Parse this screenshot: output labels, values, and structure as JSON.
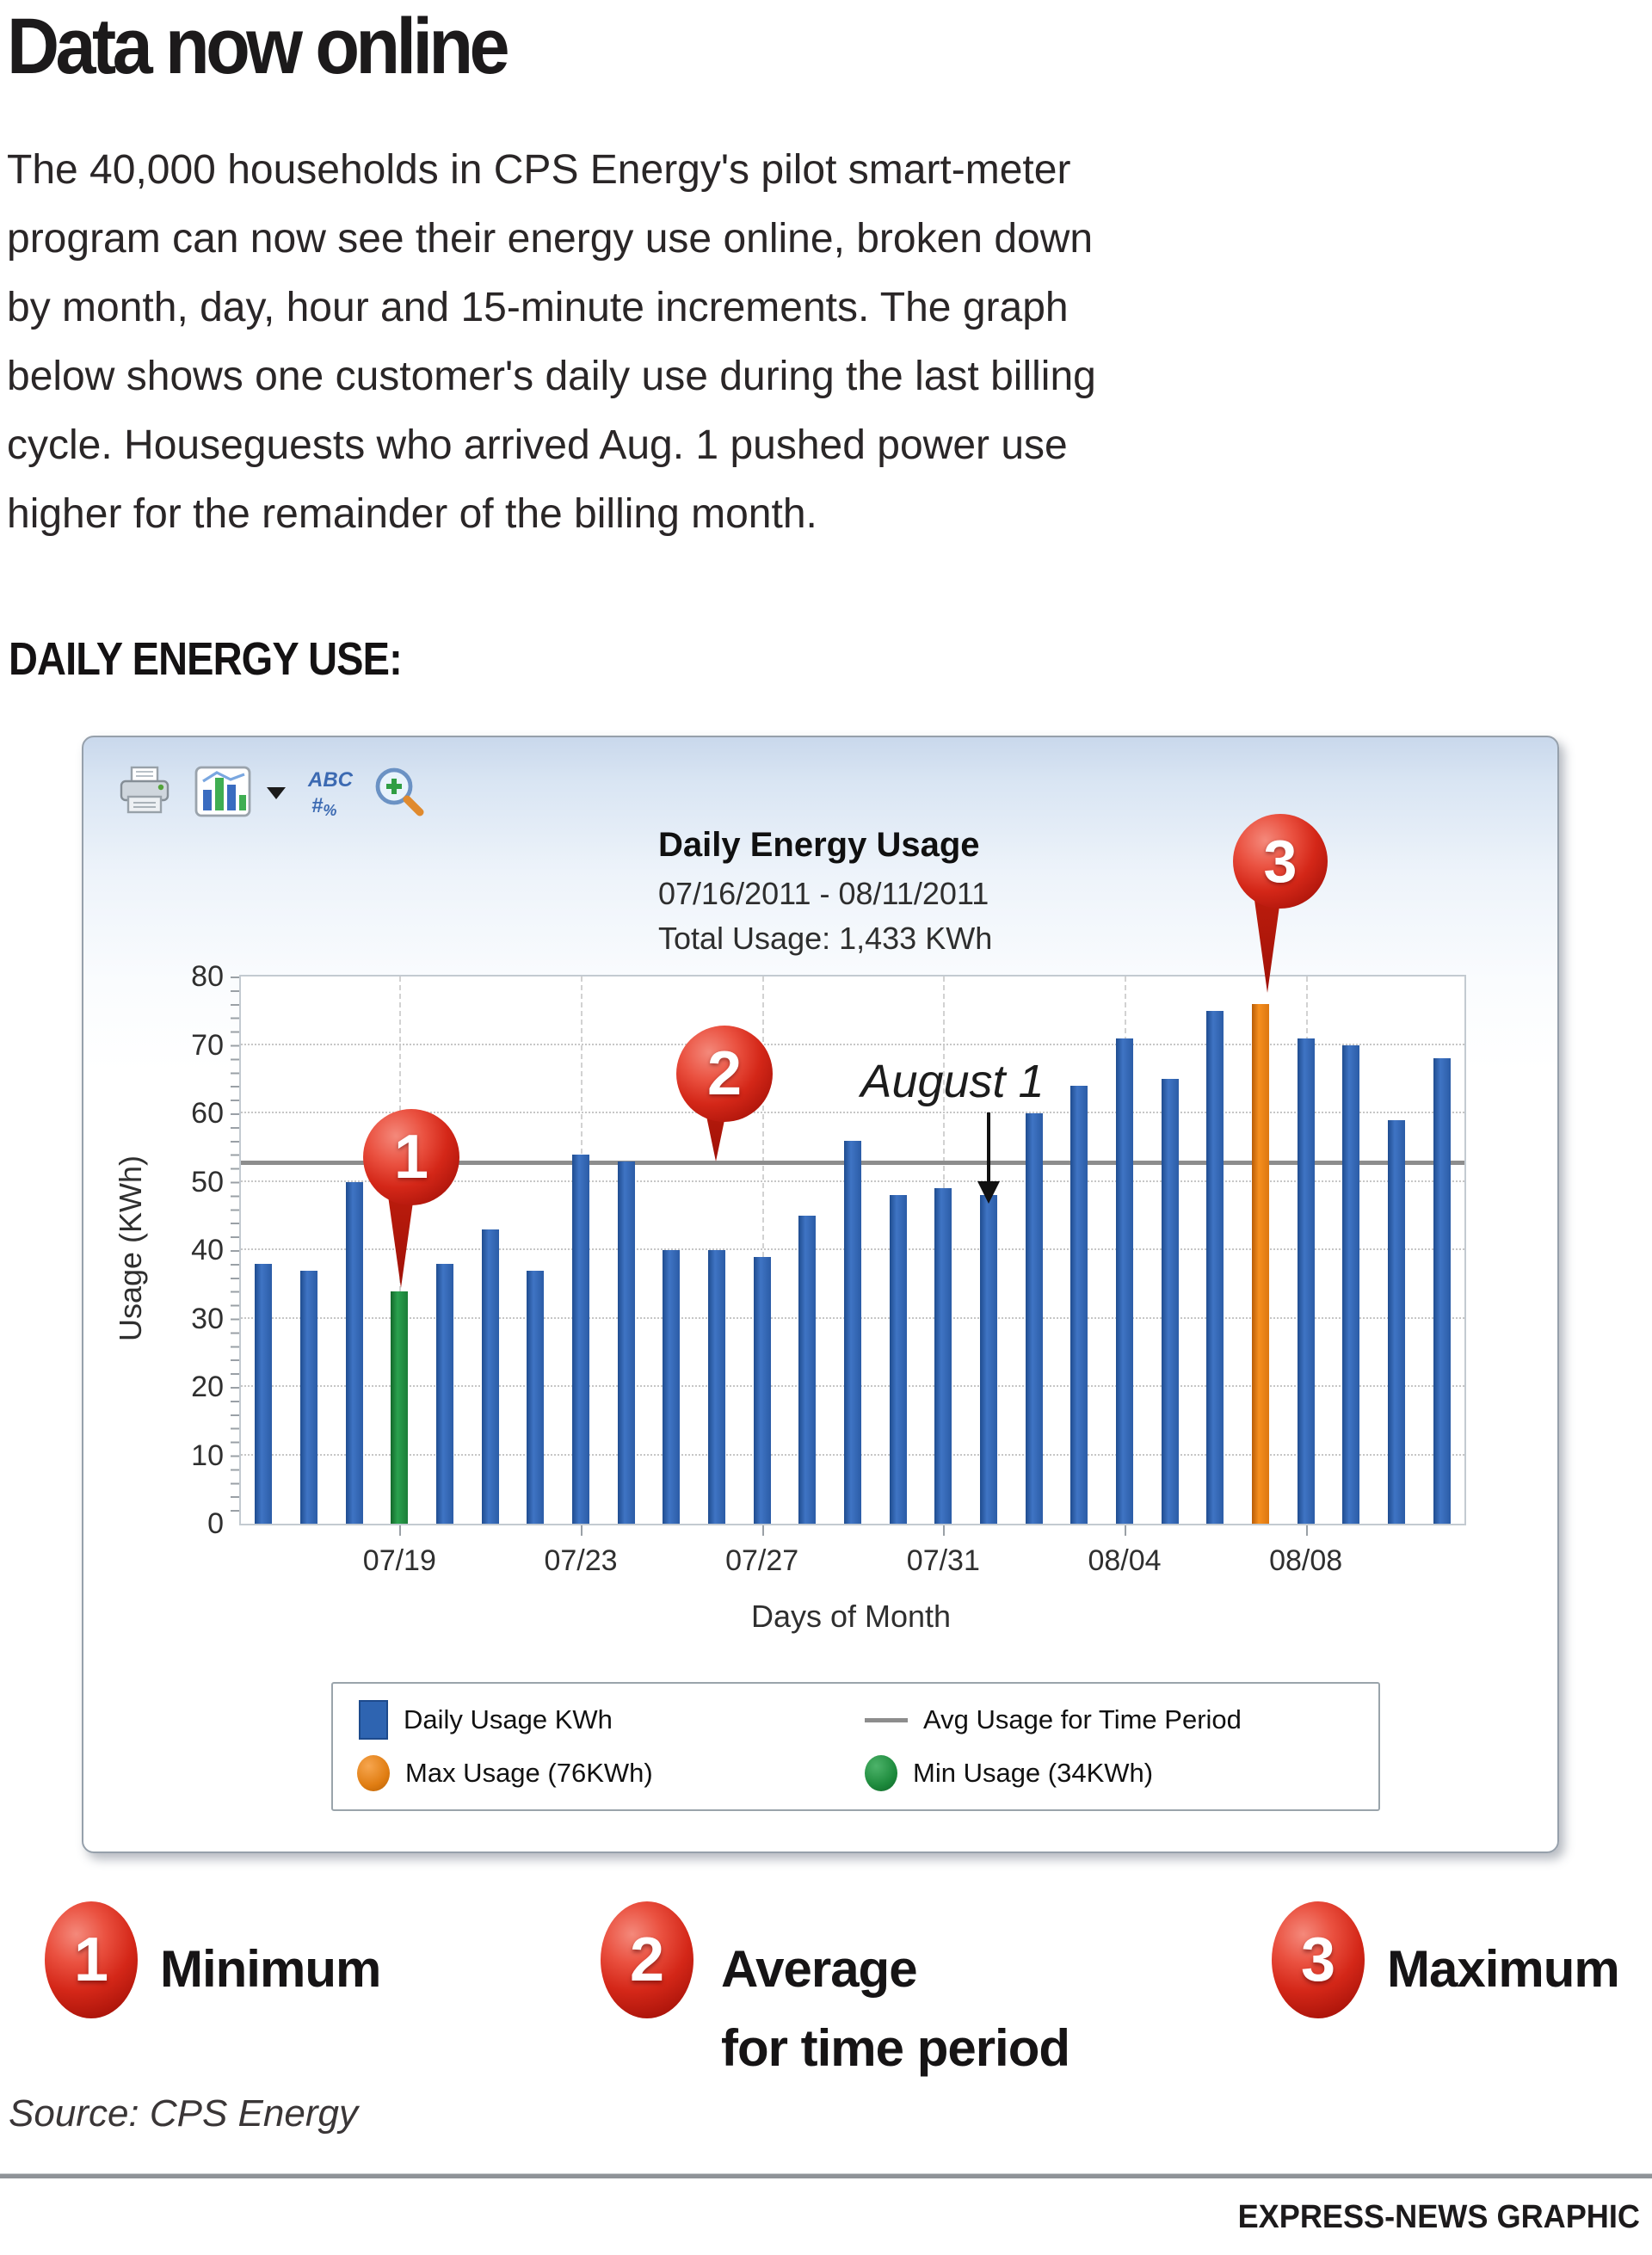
{
  "page": {
    "title": "Data now online",
    "intro_lines": [
      "The 40,000 households in CPS Energy's pilot smart-meter",
      "program can now see their energy use online, broken down",
      "by month, day, hour and 15-minute increments. The graph",
      "below shows one customer's daily use during the last billing",
      "cycle. Houseguests who arrived Aug. 1 pushed power use",
      "higher for the remainder of the billing month."
    ],
    "section_heading": "DAILY ENERGY USE:",
    "source": "Source: CPS Energy",
    "credit": "EXPRESS-NEWS GRAPHIC"
  },
  "widget": {
    "toolbar": {
      "print": "print",
      "chart_type": "chart-type",
      "chart_type_dropdown": "open chart type menu",
      "labels": "ABC #%",
      "zoom": "zoom-in"
    },
    "header": {
      "title": "Daily Energy Usage",
      "date_range": "07/16/2011 - 08/11/2011",
      "total_usage": "Total Usage: 1,433 KWh"
    }
  },
  "chart_data": {
    "type": "bar",
    "title": "Daily Energy Usage",
    "subtitle": "07/16/2011 - 08/11/2011",
    "total_label": "Total Usage: 1,433 KWh",
    "xlabel": "Days of Month",
    "ylabel": "Usage (KWh)",
    "ylim": [
      0,
      80
    ],
    "ytick_step": 10,
    "grid": true,
    "legend_position": "bottom",
    "categories": [
      "07/16",
      "07/17",
      "07/18",
      "07/19",
      "07/20",
      "07/21",
      "07/22",
      "07/23",
      "07/24",
      "07/25",
      "07/26",
      "07/27",
      "07/28",
      "07/29",
      "07/30",
      "07/31",
      "08/01",
      "08/02",
      "08/03",
      "08/04",
      "08/05",
      "08/06",
      "08/07",
      "08/08",
      "08/09",
      "08/10",
      "08/11"
    ],
    "values": [
      38,
      37,
      50,
      34,
      38,
      43,
      37,
      54,
      53,
      40,
      40,
      39,
      45,
      56,
      48,
      49,
      48,
      60,
      64,
      71,
      65,
      75,
      76,
      71,
      70,
      59,
      68
    ],
    "xticks": [
      {
        "index": 3,
        "label": "07/19"
      },
      {
        "index": 7,
        "label": "07/23"
      },
      {
        "index": 11,
        "label": "07/27"
      },
      {
        "index": 15,
        "label": "07/31"
      },
      {
        "index": 19,
        "label": "08/04"
      },
      {
        "index": 23,
        "label": "08/08"
      }
    ],
    "average_value": 52.5,
    "min_index": 3,
    "min_value": 34,
    "max_index": 22,
    "max_value": 76,
    "annotation": {
      "text": "August 1",
      "target_category": "08/01",
      "target_index": 16
    },
    "colors": {
      "bar": "#2b5ca6",
      "min_bar": "#1b7e38",
      "max_bar": "#dd7710",
      "avg_line": "#8d8d8d",
      "pin_red": "#c5200f"
    },
    "legend": [
      {
        "swatch": "blue-square",
        "label": "Daily Usage KWh"
      },
      {
        "swatch": "gray-line",
        "label": "Avg Usage for Time Period"
      },
      {
        "swatch": "orange-circle",
        "label": "Max Usage (76KWh)"
      },
      {
        "swatch": "green-circle",
        "label": "Min Usage (34KWh)"
      }
    ],
    "pins": [
      {
        "label": "1",
        "points_to": "min"
      },
      {
        "label": "2",
        "points_to": "average"
      },
      {
        "label": "3",
        "points_to": "max"
      }
    ]
  },
  "key": {
    "items": [
      {
        "num": "1",
        "label": "Minimum"
      },
      {
        "num": "2",
        "label": "Average\nfor time period"
      },
      {
        "num": "3",
        "label": "Maximum"
      }
    ]
  }
}
